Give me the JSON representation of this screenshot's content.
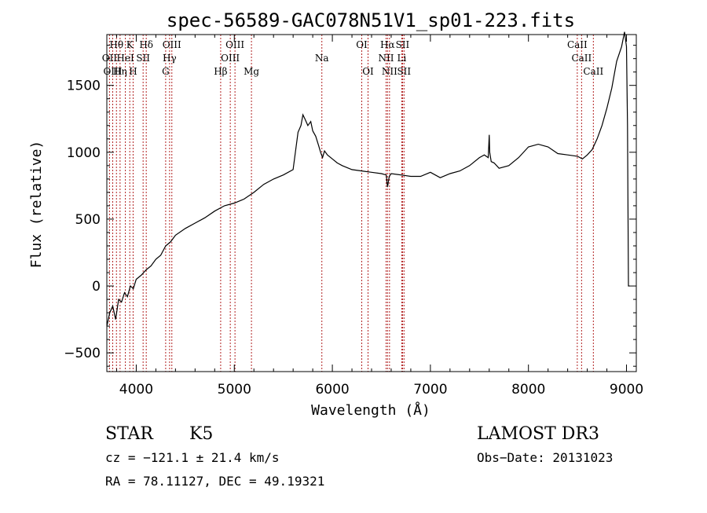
{
  "chart_data": {
    "type": "line",
    "title": "spec-56589-GAC078N51V1_sp01-223.fits",
    "xlabel": "Wavelength (Å)",
    "ylabel": "Flux (relative)",
    "xlim": [
      3700,
      9100
    ],
    "ylim": [
      -640,
      1880
    ],
    "xticks": [
      4000,
      5000,
      6000,
      7000,
      8000,
      9000
    ],
    "xtick_labels": [
      "4000",
      "5000",
      "6000",
      "7000",
      "8000",
      "9000"
    ],
    "yticks": [
      -500,
      0,
      500,
      1000,
      1500
    ],
    "ytick_labels": [
      "−500",
      "0",
      "500",
      "1000",
      "1500"
    ],
    "series": [
      {
        "name": "spectrum",
        "x": [
          3700,
          3730,
          3760,
          3790,
          3820,
          3850,
          3880,
          3910,
          3940,
          3970,
          4000,
          4050,
          4100,
          4150,
          4200,
          4250,
          4300,
          4350,
          4400,
          4500,
          4600,
          4700,
          4800,
          4900,
          5000,
          5100,
          5200,
          5300,
          5400,
          5500,
          5600,
          5650,
          5680,
          5700,
          5720,
          5750,
          5780,
          5800,
          5830,
          5860,
          5880,
          5900,
          5920,
          5950,
          6000,
          6050,
          6100,
          6200,
          6300,
          6400,
          6500,
          6550,
          6563,
          6580,
          6600,
          6700,
          6800,
          6900,
          7000,
          7100,
          7200,
          7300,
          7400,
          7500,
          7550,
          7590,
          7600,
          7605,
          7620,
          7650,
          7700,
          7800,
          7900,
          8000,
          8100,
          8200,
          8300,
          8400,
          8500,
          8550,
          8600,
          8650,
          8700,
          8750,
          8800,
          8850,
          8900,
          8950,
          8980,
          9000,
          9010,
          9020,
          9030
        ],
        "values": [
          -300,
          -200,
          -150,
          -250,
          -100,
          -120,
          -50,
          -80,
          0,
          -20,
          50,
          80,
          120,
          150,
          200,
          230,
          300,
          330,
          380,
          430,
          470,
          510,
          560,
          600,
          620,
          650,
          700,
          760,
          800,
          830,
          870,
          1150,
          1200,
          1280,
          1250,
          1200,
          1230,
          1160,
          1120,
          1050,
          1000,
          960,
          1010,
          980,
          950,
          920,
          900,
          870,
          860,
          850,
          840,
          830,
          740,
          820,
          840,
          830,
          820,
          820,
          850,
          810,
          840,
          860,
          900,
          960,
          980,
          960,
          1130,
          1000,
          930,
          920,
          880,
          900,
          960,
          1040,
          1060,
          1040,
          990,
          980,
          970,
          950,
          980,
          1020,
          1100,
          1200,
          1330,
          1480,
          1680,
          1790,
          1900,
          1790,
          1200,
          0,
          0
        ]
      }
    ],
    "emission_lines": [
      {
        "label": "Hθ",
        "wavelength": 3798,
        "row": 0
      },
      {
        "label": "K",
        "wavelength": 3934,
        "row": 0
      },
      {
        "label": "Hδ",
        "wavelength": 4102,
        "row": 0
      },
      {
        "label": "OIII",
        "wavelength": 4363,
        "row": 0
      },
      {
        "label": "OIII",
        "wavelength": 5007,
        "row": 0
      },
      {
        "label": "OI",
        "wavelength": 6300,
        "row": 0
      },
      {
        "label": "Hα",
        "wavelength": 6563,
        "row": 0
      },
      {
        "label": "SII",
        "wavelength": 6716,
        "row": 0
      },
      {
        "label": "CaII",
        "wavelength": 8498,
        "row": 0
      },
      {
        "label": "OII",
        "wavelength": 3727,
        "row": 1
      },
      {
        "label": "HeI",
        "wavelength": 3889,
        "row": 1
      },
      {
        "label": "SII",
        "wavelength": 4070,
        "row": 1
      },
      {
        "label": "Hγ",
        "wavelength": 4340,
        "row": 1
      },
      {
        "label": "OIII",
        "wavelength": 4959,
        "row": 1
      },
      {
        "label": "Na",
        "wavelength": 5893,
        "row": 1
      },
      {
        "label": "NII",
        "wavelength": 6548,
        "row": 1
      },
      {
        "label": "Li",
        "wavelength": 6708,
        "row": 1
      },
      {
        "label": "CaII",
        "wavelength": 8542,
        "row": 1
      },
      {
        "label": "OIII",
        "wavelength": 3760,
        "row": 2
      },
      {
        "label": "Hη",
        "wavelength": 3835,
        "row": 2
      },
      {
        "label": "H",
        "wavelength": 3968,
        "row": 2
      },
      {
        "label": "G",
        "wavelength": 4300,
        "row": 2
      },
      {
        "label": "Hβ",
        "wavelength": 4861,
        "row": 2
      },
      {
        "label": "Mg",
        "wavelength": 5175,
        "row": 2
      },
      {
        "label": "OI",
        "wavelength": 6364,
        "row": 2
      },
      {
        "label": "NII",
        "wavelength": 6583,
        "row": 2
      },
      {
        "label": "SII",
        "wavelength": 6731,
        "row": 2
      },
      {
        "label": "CaII",
        "wavelength": 8662,
        "row": 2
      }
    ]
  },
  "info": {
    "class_label": "STAR",
    "subclass_label": "K5",
    "survey_label": "LAMOST DR3",
    "cz_text": "cz = −121.1 ± 21.4 km/s",
    "obs_date_text": "Obs−Date: 20131023",
    "coords_text": "RA =  78.11127, DEC =  49.19321"
  },
  "colors": {
    "line_marker": "#b22222",
    "spectrum": "#000000",
    "axis": "#000000"
  }
}
